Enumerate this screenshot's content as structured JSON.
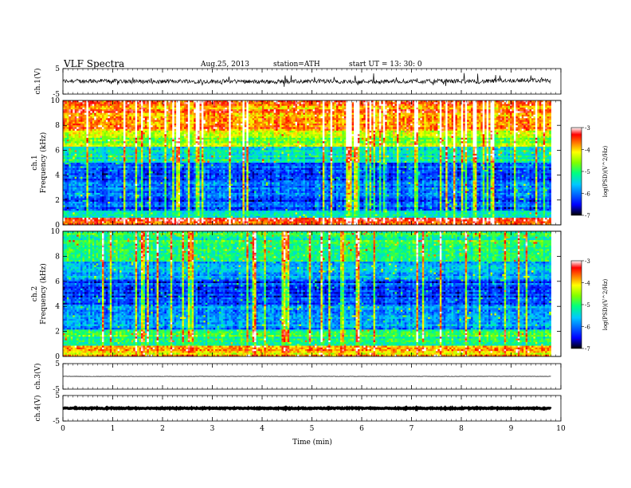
{
  "header": {
    "title": "VLF  Spectra",
    "date": "Aug.25, 2013",
    "station": "station=ATH",
    "start_time": "start  UT  =   13: 30: 0"
  },
  "chart_data": [
    {
      "type": "line",
      "name": "ch1-waveform",
      "ylabel": "ch.1(V)",
      "ylim": [
        -5,
        5
      ],
      "y_ticks": [
        "5",
        "-5"
      ],
      "x_range": [
        0,
        10
      ],
      "data_end": 9.8,
      "level": 0,
      "noise_amplitude": 0.8
    },
    {
      "type": "heatmap",
      "name": "ch1-spectrogram",
      "ylabel": "ch.1",
      "ylabel2": "Frequency  (kHz)",
      "ylim": [
        0,
        10
      ],
      "y_ticks": [
        "0",
        "2",
        "4",
        "6",
        "8",
        "10"
      ],
      "x_range": [
        0,
        10
      ],
      "data_end": 9.8
    },
    {
      "type": "heatmap",
      "name": "ch2-spectrogram",
      "ylabel": "ch.2",
      "ylabel2": "Frequency  (kHz)",
      "ylim": [
        0,
        10
      ],
      "y_ticks": [
        "0",
        "2",
        "4",
        "6",
        "8",
        "10"
      ],
      "x_range": [
        0,
        10
      ],
      "data_end": 9.8
    },
    {
      "type": "line",
      "name": "ch3-waveform",
      "ylabel": "ch.3(V)",
      "ylim": [
        -5,
        5
      ],
      "y_ticks": [
        "5",
        "-5"
      ],
      "x_range": [
        0,
        10
      ],
      "data_end": 9.8,
      "level": 0,
      "noise_amplitude": 0.05
    },
    {
      "type": "line",
      "name": "ch4-waveform",
      "ylabel": "ch.4(V)",
      "ylim": [
        -5,
        5
      ],
      "y_ticks": [
        "5",
        "-5"
      ],
      "x_range": [
        0,
        10
      ],
      "data_end": 9.8,
      "level": 0,
      "noise_amplitude": 0.2
    }
  ],
  "x_axis": {
    "label": "Time  (min)",
    "ticks": [
      "0",
      "1",
      "2",
      "3",
      "4",
      "5",
      "6",
      "7",
      "8",
      "9",
      "10"
    ]
  },
  "colorbar": {
    "label": "log(PSD)(V^2/Hz)",
    "range": [
      -7,
      -3
    ],
    "ticks": [
      "-3",
      "-4",
      "-5",
      "-6",
      "-7"
    ],
    "colors": [
      "#000080",
      "#0000ff",
      "#00a0ff",
      "#00ffa0",
      "#a0ff00",
      "#ffff00",
      "#ff8000",
      "#ff0000",
      "#ffffff"
    ]
  }
}
